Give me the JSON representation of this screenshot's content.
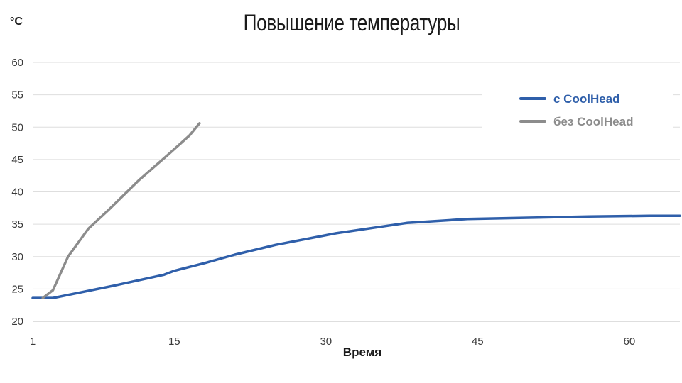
{
  "chart_data": {
    "type": "line",
    "title": "Повышение температуры",
    "ylabel": "°C",
    "xlabel": "Время",
    "x_ticks": [
      1,
      15,
      30,
      45,
      60
    ],
    "y_ticks": [
      20,
      25,
      30,
      35,
      40,
      45,
      50,
      55,
      60
    ],
    "xlim": [
      1,
      65
    ],
    "ylim": [
      20,
      60
    ],
    "grid": true,
    "legend_position": "top-right",
    "series": [
      {
        "name": "с CoolHead",
        "color": "#2f5faa",
        "x": [
          1,
          3,
          9,
          14,
          15,
          18,
          21,
          25,
          31,
          38,
          44,
          50,
          56,
          62,
          65
        ],
        "y": [
          23.6,
          23.6,
          25.5,
          27.2,
          27.8,
          29.0,
          30.3,
          31.8,
          33.6,
          35.2,
          35.8,
          36.0,
          36.2,
          36.3,
          36.3
        ]
      },
      {
        "name": "без CoolHead",
        "color": "#8c8c8c",
        "x": [
          2,
          3,
          4.5,
          6.5,
          8.5,
          11.5,
          14.5,
          16.5,
          17.5
        ],
        "y": [
          23.6,
          24.8,
          30.0,
          34.3,
          37.2,
          41.8,
          45.9,
          48.7,
          50.6
        ]
      }
    ]
  }
}
